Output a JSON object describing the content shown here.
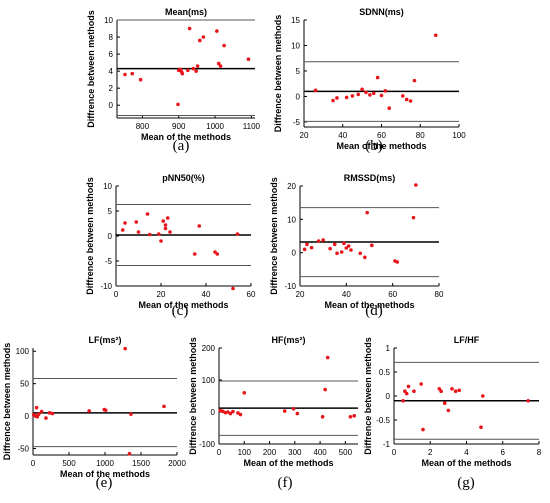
{
  "chart_data": [
    {
      "type": "scatter",
      "title": "Mean(ms)",
      "xlabel": "Mean of the methods",
      "ylabel": "Diffrence between methods",
      "caption": "(a)",
      "xlim": [
        730,
        1110
      ],
      "ylim": [
        -1.5,
        10
      ],
      "xticks": [
        800,
        900,
        1000,
        1100
      ],
      "yticks": [
        0,
        2,
        4,
        6,
        8,
        10
      ],
      "lines": {
        "mean": 4.3,
        "upper": 10.0,
        "lower": -1.2
      },
      "points": [
        [
          752,
          3.6
        ],
        [
          772,
          3.7
        ],
        [
          795,
          3.0
        ],
        [
          898,
          0.1
        ],
        [
          900,
          4.1
        ],
        [
          905,
          4.2
        ],
        [
          908,
          3.9
        ],
        [
          910,
          3.7
        ],
        [
          925,
          4.1
        ],
        [
          930,
          9.0
        ],
        [
          940,
          4.3
        ],
        [
          948,
          4.0
        ],
        [
          952,
          4.6
        ],
        [
          958,
          7.6
        ],
        [
          968,
          8.0
        ],
        [
          1005,
          8.7
        ],
        [
          1010,
          4.9
        ],
        [
          1015,
          4.6
        ],
        [
          1025,
          7.0
        ],
        [
          1092,
          5.4
        ]
      ]
    },
    {
      "type": "scatter",
      "title": "SDNN(ms)",
      "xlabel": "Mean of the methods",
      "ylabel": "Diffrence between methods",
      "caption": "(b)",
      "xlim": [
        20,
        100
      ],
      "ylim": [
        -6,
        15
      ],
      "xticks": [
        20,
        40,
        60,
        80,
        100
      ],
      "yticks": [
        -5,
        0,
        5,
        10,
        15
      ],
      "lines": {
        "mean": 1.0,
        "upper": 6.8,
        "lower": -4.9
      },
      "points": [
        [
          26,
          1.2
        ],
        [
          35,
          -0.8
        ],
        [
          37,
          -0.3
        ],
        [
          42,
          -0.2
        ],
        [
          45,
          0.1
        ],
        [
          48,
          0.4
        ],
        [
          50,
          1.4
        ],
        [
          52,
          0.8
        ],
        [
          54,
          0.3
        ],
        [
          56,
          0.6
        ],
        [
          58,
          3.7
        ],
        [
          60,
          0.2
        ],
        [
          62,
          1.1
        ],
        [
          64,
          -2.3
        ],
        [
          71,
          0.1
        ],
        [
          73,
          -0.6
        ],
        [
          75,
          -0.9
        ],
        [
          77,
          3.1
        ],
        [
          88,
          12.0
        ]
      ]
    },
    {
      "type": "scatter",
      "title": "pNN50(%)",
      "xlabel": "Mean of the methods",
      "ylabel": "Diffrence between methods",
      "caption": "(c)",
      "xlim": [
        0,
        60
      ],
      "ylim": [
        -10,
        10
      ],
      "xticks": [
        0,
        20,
        40,
        60
      ],
      "yticks": [
        -10,
        -5,
        0,
        5,
        10
      ],
      "lines": {
        "mean": 0.2,
        "upper": 6.3,
        "lower": -5.9
      },
      "points": [
        [
          3,
          1.2
        ],
        [
          4,
          2.6
        ],
        [
          9,
          2.8
        ],
        [
          10,
          0.8
        ],
        [
          14,
          4.4
        ],
        [
          15,
          0.3
        ],
        [
          19,
          0.4
        ],
        [
          20,
          -1.0
        ],
        [
          21,
          3.0
        ],
        [
          22,
          1.5
        ],
        [
          22,
          2.2
        ],
        [
          23,
          3.6
        ],
        [
          24,
          0.8
        ],
        [
          35,
          -3.6
        ],
        [
          37,
          2.0
        ],
        [
          44,
          -3.2
        ],
        [
          45,
          -3.6
        ],
        [
          52,
          -10.5
        ],
        [
          54,
          0.4
        ]
      ]
    },
    {
      "type": "scatter",
      "title": "RMSSD(ms)",
      "xlabel": "Mean of the methods",
      "ylabel": "Diffrence between methods",
      "caption": "(d)",
      "xlim": [
        20,
        80
      ],
      "ylim": [
        -10,
        20
      ],
      "xticks": [
        20,
        40,
        60,
        80
      ],
      "yticks": [
        -10,
        0,
        10,
        20
      ],
      "lines": {
        "mean": 3.2,
        "upper": 13.5,
        "lower": -7.2
      },
      "points": [
        [
          22,
          1.0
        ],
        [
          23,
          2.5
        ],
        [
          25,
          1.5
        ],
        [
          28,
          3.5
        ],
        [
          30,
          3.8
        ],
        [
          33,
          1.2
        ],
        [
          35,
          2.5
        ],
        [
          36,
          -0.2
        ],
        [
          38,
          0.2
        ],
        [
          39,
          2.8
        ],
        [
          40,
          1.4
        ],
        [
          41,
          2.0
        ],
        [
          42,
          0.8
        ],
        [
          46,
          -0.2
        ],
        [
          48,
          -1.4
        ],
        [
          49,
          12.0
        ],
        [
          51,
          2.2
        ],
        [
          61,
          -2.5
        ],
        [
          62,
          -2.8
        ],
        [
          69,
          10.5
        ],
        [
          70,
          20.3
        ]
      ]
    },
    {
      "type": "scatter",
      "title": "LF(ms²)",
      "xlabel": "Mean of the methods",
      "ylabel": "Diffrence between methods",
      "caption": "(e)",
      "xlim": [
        0,
        2000
      ],
      "ylim": [
        -60,
        105
      ],
      "xticks": [
        0,
        500,
        1000,
        1500,
        2000
      ],
      "yticks": [
        -50,
        0,
        50,
        100
      ],
      "lines": {
        "mean": 5.0,
        "upper": 58.0,
        "lower": -47.0
      },
      "points": [
        [
          10,
          2
        ],
        [
          25,
          1
        ],
        [
          40,
          0
        ],
        [
          50,
          13
        ],
        [
          60,
          -1
        ],
        [
          80,
          3
        ],
        [
          120,
          7
        ],
        [
          180,
          -3
        ],
        [
          230,
          5
        ],
        [
          270,
          4
        ],
        [
          780,
          8
        ],
        [
          990,
          10
        ],
        [
          1010,
          9
        ],
        [
          1280,
          104
        ],
        [
          1340,
          -58
        ],
        [
          1360,
          3
        ],
        [
          1820,
          15
        ]
      ]
    },
    {
      "type": "scatter",
      "title": "HF(ms²)",
      "xlabel": "Mean of the methods",
      "ylabel": "Diffrence between methods",
      "caption": "(f)",
      "xlim": [
        0,
        550
      ],
      "ylim": [
        -100,
        200
      ],
      "xticks": [
        0,
        100,
        200,
        300,
        400,
        500
      ],
      "yticks": [
        -100,
        0,
        100,
        200
      ],
      "lines": {
        "mean": 12.0,
        "upper": 97.0,
        "lower": -73.0
      },
      "points": [
        [
          5,
          5
        ],
        [
          15,
          2
        ],
        [
          25,
          -2
        ],
        [
          35,
          0
        ],
        [
          45,
          -5
        ],
        [
          55,
          1
        ],
        [
          75,
          -3
        ],
        [
          85,
          -8
        ],
        [
          100,
          60
        ],
        [
          260,
          3
        ],
        [
          295,
          10
        ],
        [
          310,
          -5
        ],
        [
          410,
          -15
        ],
        [
          420,
          70
        ],
        [
          430,
          170
        ],
        [
          520,
          -15
        ],
        [
          535,
          -12
        ]
      ]
    },
    {
      "type": "scatter",
      "title": "LF/HF",
      "xlabel": "Mean of the methods",
      "ylabel": "Diffrence between methods",
      "caption": "(g)",
      "xlim": [
        0,
        8
      ],
      "ylim": [
        -1,
        1
      ],
      "xticks": [
        0,
        2,
        4,
        6,
        8
      ],
      "yticks": [
        -1,
        -0.5,
        0,
        0.5,
        1
      ],
      "lines": {
        "mean": -0.1,
        "upper": 0.7,
        "lower": -0.9
      },
      "points": [
        [
          0.5,
          -0.1
        ],
        [
          0.6,
          0.1
        ],
        [
          0.7,
          0.05
        ],
        [
          0.8,
          0.2
        ],
        [
          1.1,
          0.1
        ],
        [
          1.5,
          0.25
        ],
        [
          1.6,
          -0.7
        ],
        [
          2.5,
          0.15
        ],
        [
          2.6,
          0.1
        ],
        [
          2.8,
          -0.15
        ],
        [
          3.0,
          -0.3
        ],
        [
          3.2,
          0.15
        ],
        [
          3.4,
          0.1
        ],
        [
          3.6,
          0.12
        ],
        [
          4.8,
          -0.65
        ],
        [
          4.9,
          0.0
        ],
        [
          7.4,
          -0.1
        ]
      ]
    }
  ]
}
